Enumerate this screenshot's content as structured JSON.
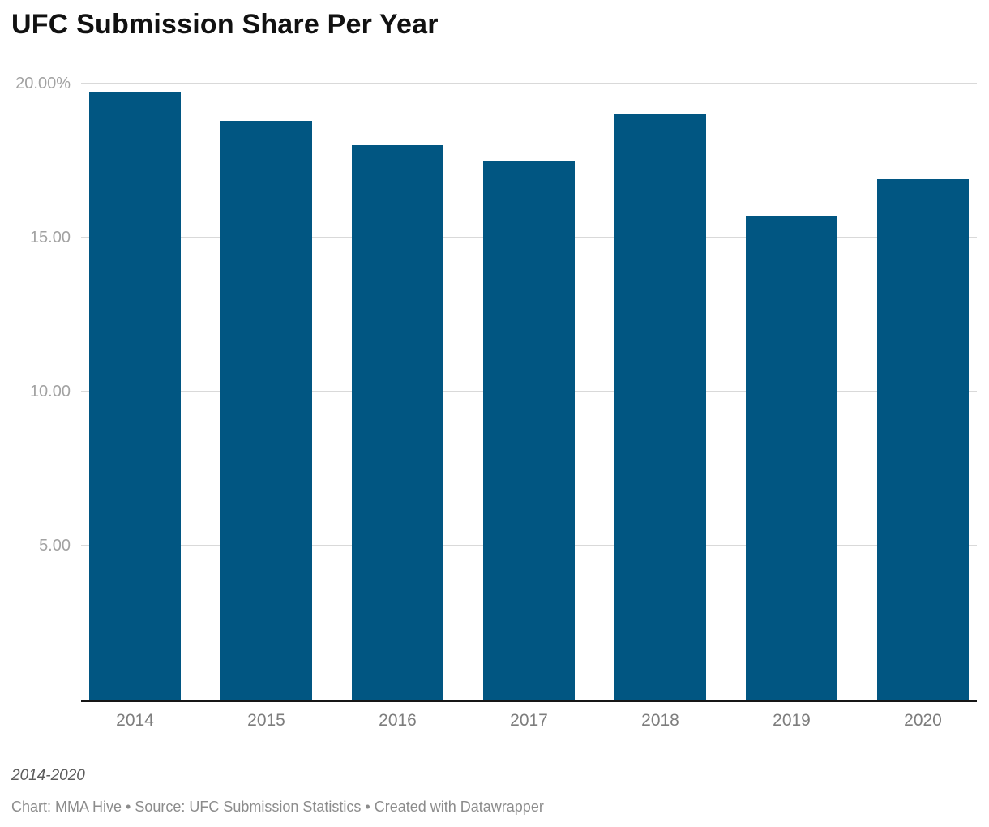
{
  "chart_data": {
    "type": "bar",
    "title": "UFC Submission Share Per Year",
    "categories": [
      "2014",
      "2015",
      "2016",
      "2017",
      "2018",
      "2019",
      "2020"
    ],
    "values": [
      19.7,
      18.8,
      18.0,
      17.5,
      19.0,
      15.7,
      16.9
    ],
    "xlabel": "",
    "ylabel": "",
    "ylim": [
      0,
      20
    ],
    "yticks": [
      {
        "value": 5,
        "label": "5.00"
      },
      {
        "value": 10,
        "label": "10.00"
      },
      {
        "value": 15,
        "label": "15.00"
      },
      {
        "value": 20,
        "label": "20.00%"
      }
    ],
    "grid": "horizontal",
    "legend": "none",
    "bar_color": "#015682",
    "gridline_color": "#d9d9d9",
    "baseline_color": "#161616",
    "footnote": "2014-2020",
    "byline": "Chart: MMA Hive • Source: UFC Submission Statistics • Created with Datawrapper"
  }
}
